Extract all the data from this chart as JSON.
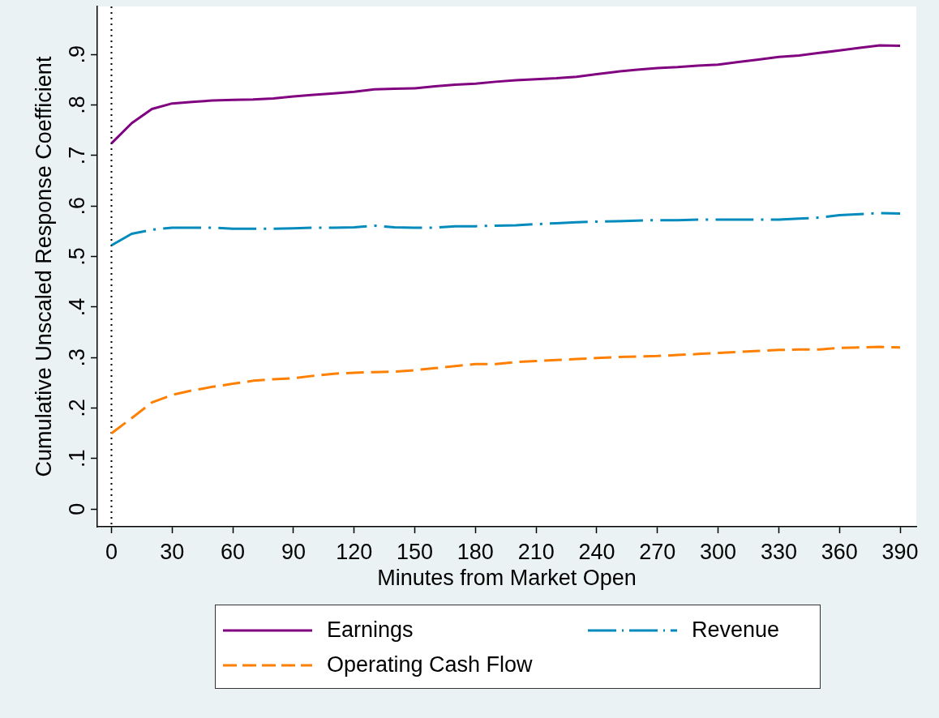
{
  "chart_data": {
    "type": "line",
    "xlabel": "Minutes from Market Open",
    "ylabel": "Cumulative Unscaled Response Coefficient",
    "x": [
      0,
      10,
      20,
      30,
      40,
      50,
      60,
      70,
      80,
      90,
      100,
      110,
      120,
      130,
      140,
      150,
      160,
      170,
      180,
      190,
      200,
      210,
      220,
      230,
      240,
      250,
      260,
      270,
      280,
      290,
      300,
      310,
      320,
      330,
      340,
      350,
      360,
      370,
      380,
      390
    ],
    "series": [
      {
        "name": "Earnings",
        "color": "#800080",
        "line_style": "solid",
        "values": [
          0.724,
          0.764,
          0.792,
          0.803,
          0.806,
          0.809,
          0.81,
          0.811,
          0.813,
          0.817,
          0.82,
          0.823,
          0.826,
          0.831,
          0.832,
          0.833,
          0.837,
          0.84,
          0.842,
          0.846,
          0.849,
          0.851,
          0.853,
          0.856,
          0.861,
          0.866,
          0.87,
          0.873,
          0.875,
          0.878,
          0.88,
          0.885,
          0.89,
          0.895,
          0.898,
          0.903,
          0.908,
          0.913,
          0.918,
          0.917
        ]
      },
      {
        "name": "Revenue",
        "color": "#008bbc",
        "line_style": "dashdot",
        "values": [
          0.522,
          0.545,
          0.553,
          0.557,
          0.557,
          0.557,
          0.555,
          0.555,
          0.555,
          0.556,
          0.557,
          0.557,
          0.558,
          0.561,
          0.558,
          0.557,
          0.557,
          0.56,
          0.56,
          0.561,
          0.562,
          0.564,
          0.566,
          0.568,
          0.569,
          0.57,
          0.571,
          0.572,
          0.572,
          0.573,
          0.573,
          0.573,
          0.573,
          0.573,
          0.575,
          0.577,
          0.582,
          0.584,
          0.586,
          0.585
        ]
      },
      {
        "name": "Operating Cash Flow",
        "color": "#ff7f00",
        "line_style": "dashed",
        "values": [
          0.15,
          0.18,
          0.211,
          0.226,
          0.235,
          0.242,
          0.248,
          0.254,
          0.257,
          0.259,
          0.264,
          0.268,
          0.27,
          0.271,
          0.272,
          0.275,
          0.279,
          0.283,
          0.287,
          0.287,
          0.291,
          0.293,
          0.295,
          0.297,
          0.299,
          0.301,
          0.302,
          0.303,
          0.305,
          0.307,
          0.309,
          0.311,
          0.313,
          0.315,
          0.316,
          0.316,
          0.319,
          0.32,
          0.321,
          0.32
        ]
      }
    ],
    "xlim": [
      -7,
      398
    ],
    "ylim": [
      -0.035,
      0.995
    ],
    "xticks": [
      0,
      30,
      60,
      90,
      120,
      150,
      180,
      210,
      240,
      270,
      300,
      330,
      360,
      390
    ],
    "yticks": [
      0,
      {
        "value": 0.1,
        "label": ".1"
      },
      {
        "value": 0.2,
        "label": ".2"
      },
      {
        "value": 0.3,
        "label": ".3"
      },
      {
        "value": 0.4,
        "label": ".4"
      },
      {
        "value": 0.5,
        "label": ".5"
      },
      {
        "value": 0.6,
        "label": ".6"
      },
      {
        "value": 0.7,
        "label": ".7"
      },
      {
        "value": 0.8,
        "label": ".8"
      },
      {
        "value": 0.9,
        "label": ".9"
      }
    ],
    "ref_lines": [
      {
        "axis": "x",
        "value": 0,
        "color": "#000000",
        "line_style": "dotted"
      }
    ],
    "grid": false,
    "legend": "bottom",
    "marker": "none"
  }
}
